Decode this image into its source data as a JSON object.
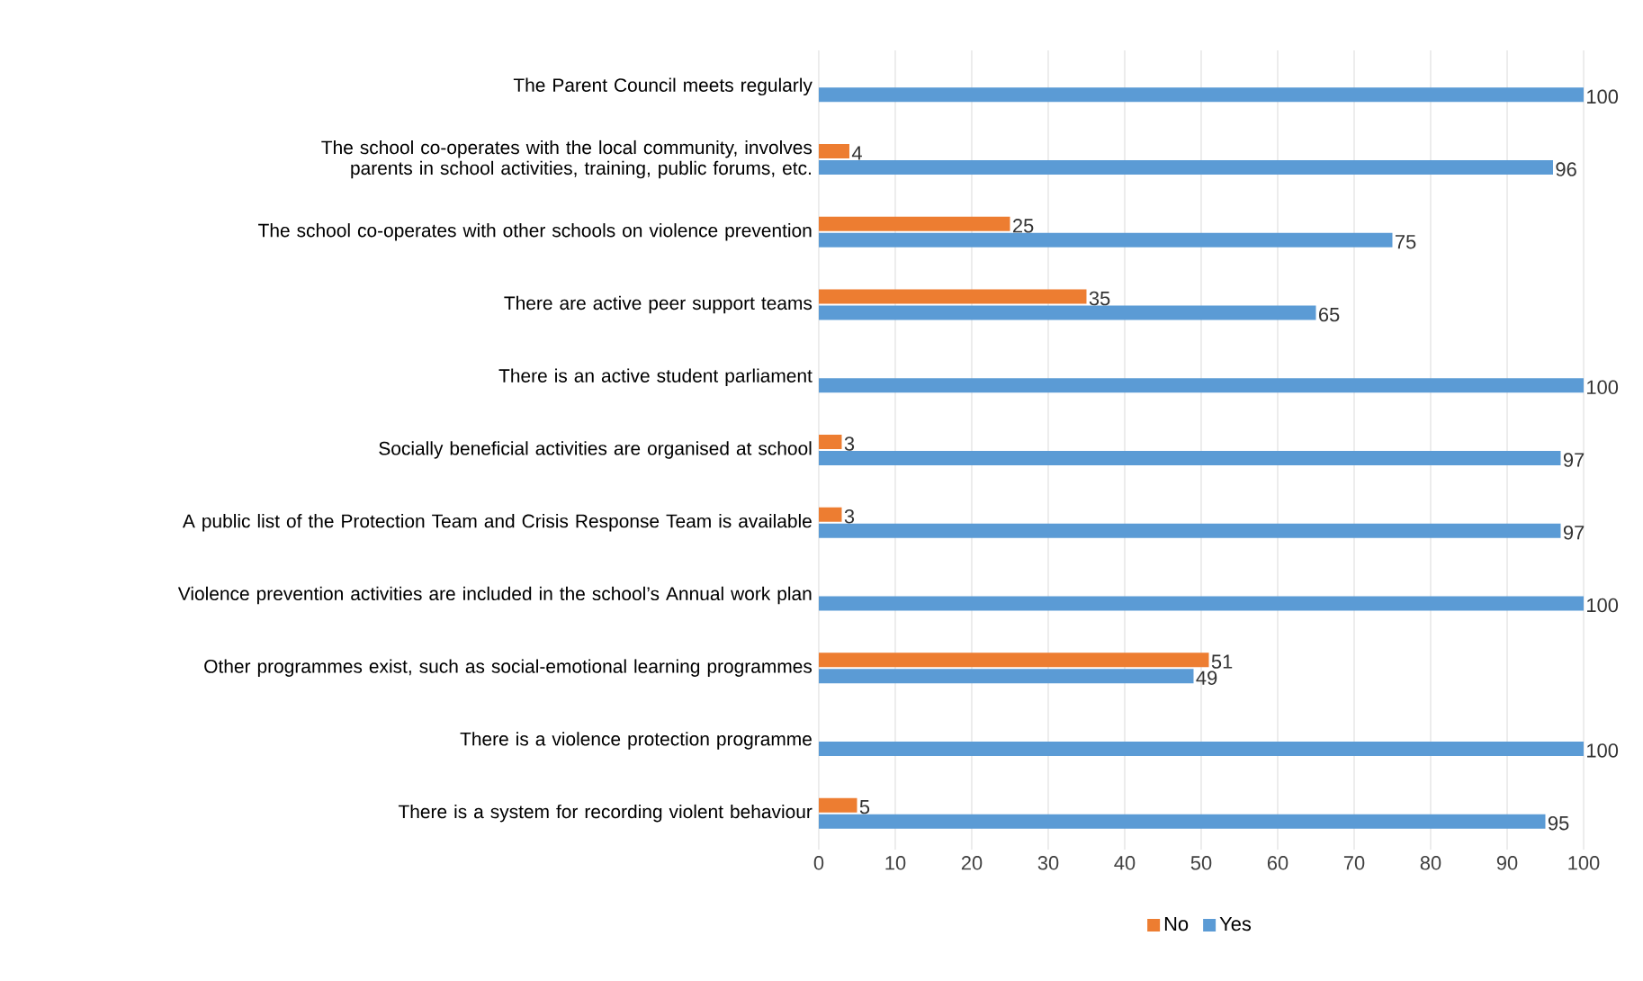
{
  "chart_data": {
    "type": "bar",
    "orientation": "horizontal",
    "categories": [
      "The Parent Council meets regularly",
      "The school co-operates with the local community, involves parents in school activities, training, public forums, etc.",
      "The school co-operates with other schools on violence prevention",
      "There are active peer support teams",
      "There is an active student parliament",
      "Socially beneficial activities are organised at school",
      "A public list of the Protection Team and Crisis Response Team is available",
      "Violence prevention activities are included in the school’s Annual work plan",
      "Other programmes exist, such as social-emotional learning programmes",
      "There is a violence protection programme",
      "There is a system for recording violent behaviour"
    ],
    "series": [
      {
        "name": "No",
        "color": "#ed7d31",
        "values": [
          null,
          4,
          25,
          35,
          null,
          3,
          3,
          null,
          51,
          null,
          5
        ]
      },
      {
        "name": "Yes",
        "color": "#5b9bd5",
        "values": [
          100,
          96,
          75,
          65,
          100,
          97,
          97,
          100,
          49,
          100,
          95
        ]
      }
    ],
    "xlim": [
      0,
      100
    ],
    "xticks": [
      0,
      10,
      20,
      30,
      40,
      50,
      60,
      70,
      80,
      90,
      100
    ],
    "grid": "x",
    "legend": "bottom",
    "data_labels": true
  }
}
